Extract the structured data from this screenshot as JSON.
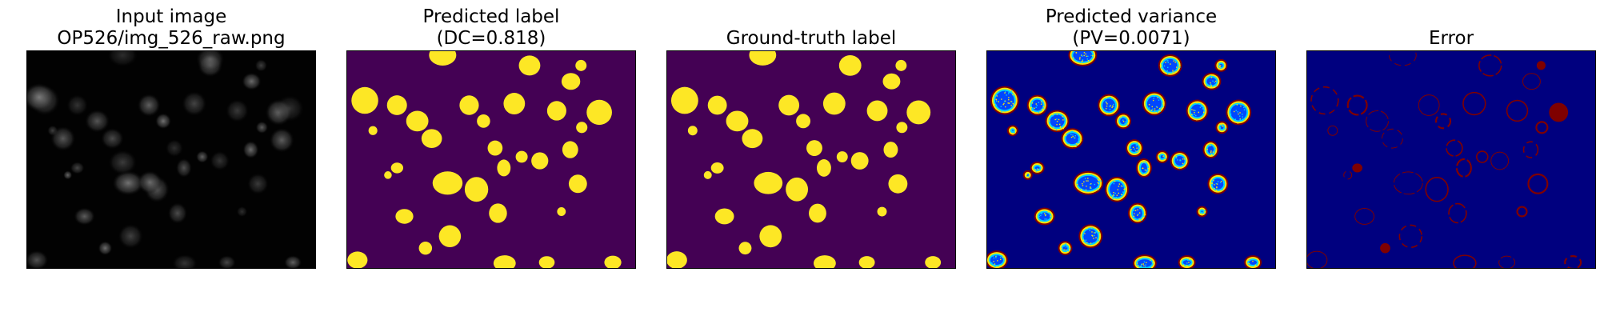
{
  "panels": [
    {
      "id": "input",
      "title_lines": [
        "Input image",
        "OP526/img_526_raw.png"
      ]
    },
    {
      "id": "pred",
      "title_lines": [
        "Predicted label",
        "(DC=0.818)"
      ]
    },
    {
      "id": "gt",
      "title_lines": [
        "Ground-truth label"
      ]
    },
    {
      "id": "var",
      "title_lines": [
        "Predicted variance",
        "(PV=0.0071)"
      ]
    },
    {
      "id": "err",
      "title_lines": [
        "Error"
      ]
    }
  ],
  "colors": {
    "input_background": "#020202",
    "label_background": "#440154",
    "label_foreground": "#fde725",
    "jet_background": "#00007f",
    "jet_red": "#7f0000",
    "jet_yellow": "#ffe600",
    "jet_cyan": "#00d4ff",
    "jet_blue": "#0047ff"
  }
}
